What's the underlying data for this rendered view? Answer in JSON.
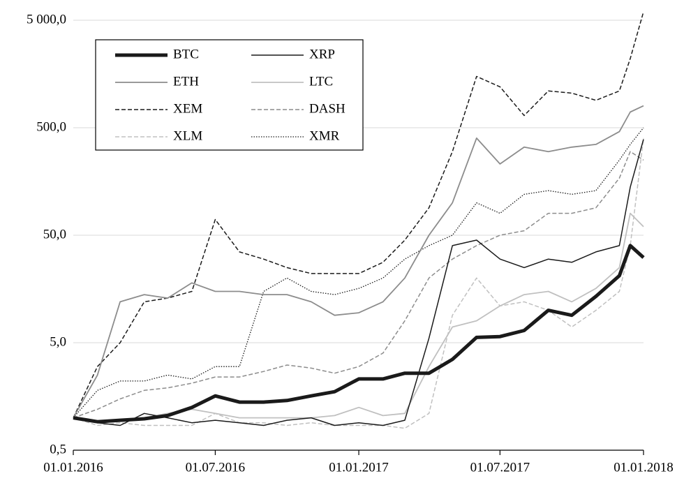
{
  "chart_data": {
    "type": "line",
    "x": [
      "01.01.2016",
      "01.02.2016",
      "01.03.2016",
      "01.04.2016",
      "01.05.2016",
      "01.06.2016",
      "01.07.2016",
      "01.08.2016",
      "01.09.2016",
      "01.10.2016",
      "01.11.2016",
      "01.12.2016",
      "01.01.2017",
      "01.02.2017",
      "01.03.2017",
      "01.04.2017",
      "01.05.2017",
      "01.06.2017",
      "01.07.2017",
      "01.08.2017",
      "01.09.2017",
      "01.10.2017",
      "01.11.2017",
      "01.12.2017",
      "15.12.2017",
      "01.01.2018"
    ],
    "series": [
      {
        "name": "BTC",
        "color": "#1a1a1a",
        "width": 5,
        "dash": "solid",
        "values": [
          1,
          0.92,
          0.95,
          0.98,
          1.05,
          1.25,
          1.6,
          1.4,
          1.4,
          1.45,
          1.6,
          1.75,
          2.3,
          2.3,
          2.6,
          2.6,
          3.5,
          5.6,
          5.7,
          6.5,
          10,
          9,
          13.5,
          21,
          40,
          31
        ]
      },
      {
        "name": "XRP",
        "color": "#1a1a1a",
        "width": 1.5,
        "dash": "solid",
        "values": [
          1,
          0.9,
          0.85,
          1.1,
          1.0,
          0.9,
          0.95,
          0.9,
          0.85,
          0.95,
          1.0,
          0.85,
          0.9,
          0.85,
          0.95,
          5.5,
          40,
          45,
          30,
          25,
          30,
          28,
          35,
          40,
          140,
          390
        ]
      },
      {
        "name": "ETH",
        "color": "#8c8c8c",
        "width": 1.8,
        "dash": "solid",
        "values": [
          1,
          2.5,
          12,
          14,
          13,
          18,
          15,
          15,
          14,
          14,
          12,
          9,
          9.5,
          12,
          20,
          50,
          100,
          400,
          230,
          330,
          300,
          330,
          350,
          460,
          700,
          800
        ]
      },
      {
        "name": "LTC",
        "color": "#c0c0c0",
        "width": 1.8,
        "dash": "solid",
        "values": [
          1,
          0.9,
          0.95,
          1,
          1.1,
          1.2,
          1.1,
          1,
          1,
          1,
          1,
          1.05,
          1.25,
          1.05,
          1.1,
          3,
          7,
          8,
          11,
          14,
          15,
          12,
          16,
          25,
          80,
          60
        ]
      },
      {
        "name": "XEM",
        "color": "#1a1a1a",
        "width": 1.5,
        "dash": "dashed",
        "values": [
          1,
          3,
          5,
          12,
          13,
          15,
          70,
          35,
          30,
          25,
          22,
          22,
          22,
          28,
          45,
          90,
          300,
          1500,
          1200,
          650,
          1100,
          1050,
          900,
          1100,
          2200,
          6000
        ]
      },
      {
        "name": "DASH",
        "color": "#8c8c8c",
        "width": 1.5,
        "dash": "dashed",
        "values": [
          1,
          1.2,
          1.5,
          1.8,
          1.9,
          2.1,
          2.4,
          2.4,
          2.7,
          3.1,
          2.9,
          2.6,
          3,
          4,
          8,
          20,
          30,
          40,
          50,
          55,
          80,
          80,
          90,
          170,
          300,
          250
        ]
      },
      {
        "name": "XLM",
        "color": "#c0c0c0",
        "width": 1.5,
        "dash": "dashed",
        "values": [
          1,
          0.85,
          0.9,
          0.85,
          0.85,
          0.85,
          1.1,
          0.9,
          0.9,
          0.85,
          0.9,
          0.85,
          0.85,
          0.85,
          0.8,
          1.1,
          9,
          20,
          11,
          12,
          10,
          7,
          10,
          15,
          40,
          400
        ]
      },
      {
        "name": "XMR",
        "color": "#1a1a1a",
        "width": 1.3,
        "dash": "dotted",
        "values": [
          1,
          1.8,
          2.2,
          2.2,
          2.5,
          2.3,
          3,
          3,
          15,
          20,
          15,
          14,
          16,
          20,
          30,
          40,
          50,
          100,
          80,
          120,
          130,
          120,
          130,
          250,
          350,
          500
        ]
      }
    ],
    "ylog": true,
    "ylim": [
      0.5,
      5000
    ],
    "yticks": [
      {
        "value": 0.5,
        "label": "0,5"
      },
      {
        "value": 5,
        "label": "5,0"
      },
      {
        "value": 50,
        "label": "50,0"
      },
      {
        "value": 500,
        "label": "500,0"
      },
      {
        "value": 5000,
        "label": "5 000,0"
      }
    ],
    "xlim": [
      "01.01.2016",
      "01.01.2018"
    ],
    "xticks": [
      "01.01.2016",
      "01.07.2016",
      "01.01.2017",
      "01.07.2017",
      "01.01.2018"
    ],
    "grid": true,
    "legend": "upper left"
  }
}
